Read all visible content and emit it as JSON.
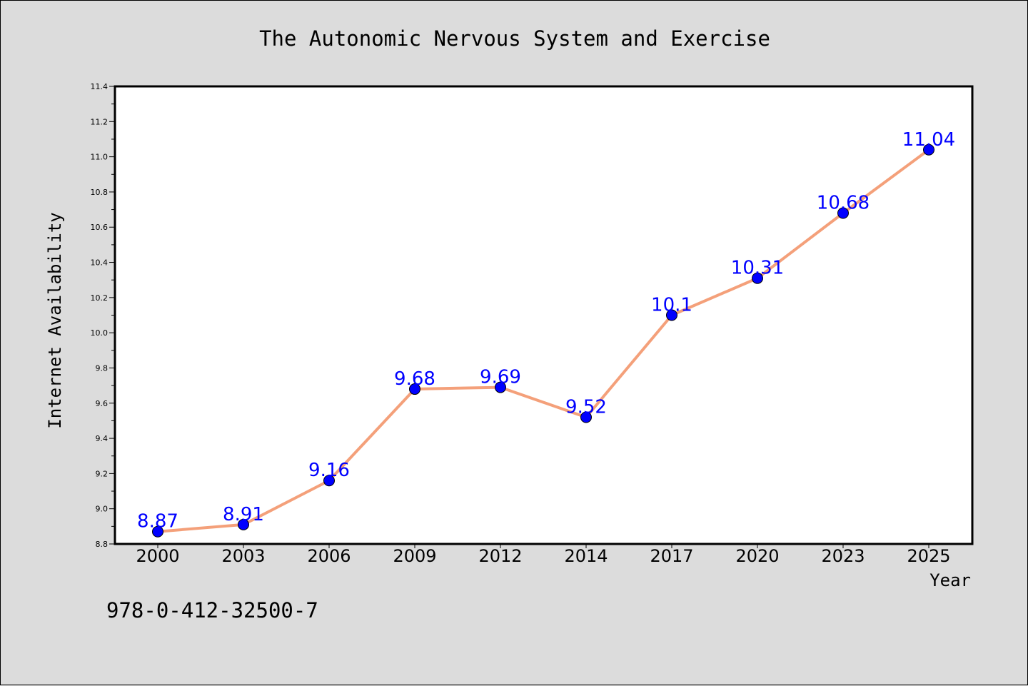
{
  "chart_data": {
    "type": "line",
    "title": "The Autonomic Nervous System and Exercise",
    "xlabel": "Year",
    "ylabel": "Internet Availability",
    "categories": [
      "2000",
      "2003",
      "2006",
      "2009",
      "2012",
      "2014",
      "2017",
      "2020",
      "2023",
      "2025"
    ],
    "series": [
      {
        "values": [
          8.87,
          8.91,
          9.16,
          9.68,
          9.69,
          9.52,
          10.1,
          10.31,
          10.68,
          11.04
        ],
        "labels": [
          "8.87",
          "8.91",
          "9.16",
          "9.68",
          "9.69",
          "9.52",
          "10.1",
          "10.31",
          "10.68",
          "11.04"
        ],
        "line_color": "#f4a07a",
        "marker_color": "#0000ff"
      }
    ],
    "ylim": [
      8.8,
      11.4
    ],
    "yticks": [
      "8.8",
      "9.0",
      "9.2",
      "9.4",
      "9.6",
      "9.8",
      "10.0",
      "10.2",
      "10.4",
      "10.6",
      "10.8",
      "11.0",
      "11.2",
      "11.4"
    ],
    "grid": false,
    "legend": "none"
  },
  "footer": {
    "isbn": "978-0-412-32500-7"
  },
  "colors": {
    "background": "#dcdcdc",
    "plot_background": "#ffffff",
    "line": "#f4a07a",
    "marker": "#0000ff",
    "data_label": "#0000ff"
  }
}
